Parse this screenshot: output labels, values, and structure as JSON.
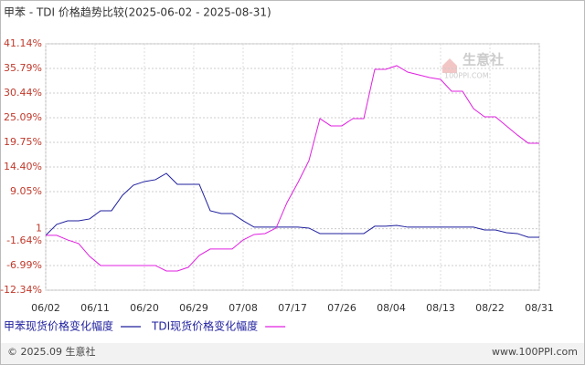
{
  "chart_data": {
    "type": "line",
    "title": "甲苯 - TDI 价格趋势比较(2025-06-02 - 2025-08-31)",
    "x": [
      "06/02",
      "06/04",
      "06/06",
      "06/08",
      "06/10",
      "06/12",
      "06/14",
      "06/16",
      "06/18",
      "06/20",
      "06/22",
      "06/24",
      "06/26",
      "06/28",
      "06/30",
      "07/02",
      "07/04",
      "07/06",
      "07/08",
      "07/10",
      "07/12",
      "07/14",
      "07/16",
      "07/18",
      "07/20",
      "07/22",
      "07/24",
      "07/26",
      "07/28",
      "07/30",
      "08/01",
      "08/03",
      "08/05",
      "08/07",
      "08/09",
      "08/11",
      "08/13",
      "08/15",
      "08/17",
      "08/19",
      "08/21",
      "08/23",
      "08/25",
      "08/27",
      "08/29",
      "08/31"
    ],
    "series": [
      {
        "name": "甲苯现货价格变化幅度",
        "color": "#1f1f9e",
        "values": [
          -0.44,
          1.93,
          2.72,
          2.72,
          3.12,
          4.9,
          4.9,
          8.27,
          10.45,
          11.24,
          11.64,
          13.02,
          10.64,
          10.64,
          10.64,
          4.9,
          4.31,
          4.31,
          2.72,
          1.34,
          1.34,
          1.34,
          1.34,
          1.34,
          1.14,
          -0.05,
          -0.05,
          -0.05,
          -0.05,
          -0.05,
          1.54,
          1.54,
          1.73,
          1.34,
          1.34,
          1.34,
          1.34,
          1.34,
          1.34,
          1.34,
          0.74,
          0.74,
          0.15,
          -0.05,
          -0.84,
          -0.84
        ]
      },
      {
        "name": "TDI现货价格变化幅度",
        "color": "#e020e0",
        "values": [
          -0.44,
          -0.44,
          -1.43,
          -2.23,
          -5.0,
          -6.98,
          -6.98,
          -6.98,
          -6.98,
          -6.98,
          -6.98,
          -8.17,
          -8.17,
          -7.37,
          -4.8,
          -3.41,
          -3.41,
          -3.41,
          -1.43,
          -0.25,
          -0.05,
          1.14,
          6.68,
          11.04,
          15.79,
          24.9,
          23.32,
          23.32,
          24.9,
          24.9,
          35.6,
          35.6,
          36.39,
          35.0,
          34.41,
          33.81,
          33.42,
          30.84,
          30.84,
          27.08,
          25.3,
          25.3,
          23.32,
          21.34,
          19.56,
          19.56
        ]
      }
    ],
    "xlim": [
      "06/02",
      "08/31"
    ],
    "xticks": [
      "06/02",
      "06/11",
      "06/20",
      "06/29",
      "07/08",
      "07/17",
      "07/26",
      "08/04",
      "08/13",
      "08/22",
      "08/31"
    ],
    "ylim": [
      -12.34,
      41.14
    ],
    "yticks": [
      {
        "value": 41.14,
        "label": "41.14%"
      },
      {
        "value": 35.79,
        "label": "35.79%"
      },
      {
        "value": 30.44,
        "label": "30.44%"
      },
      {
        "value": 25.09,
        "label": "25.09%"
      },
      {
        "value": 19.75,
        "label": "19.75%"
      },
      {
        "value": 14.4,
        "label": "14.40%"
      },
      {
        "value": 9.05,
        "label": "9.05%"
      },
      1,
      {
        "value": -1.64,
        "label": "-1.64%"
      },
      {
        "value": -6.99,
        "label": "-6.99%"
      },
      {
        "value": -12.34,
        "label": "-12.34%"
      }
    ],
    "grid": true
  },
  "watermark": {
    "brand": "生意社",
    "site": "100PPI.COM"
  },
  "footer": {
    "left": "© 2025.09 生意社",
    "right": "www.100PPI.com"
  }
}
